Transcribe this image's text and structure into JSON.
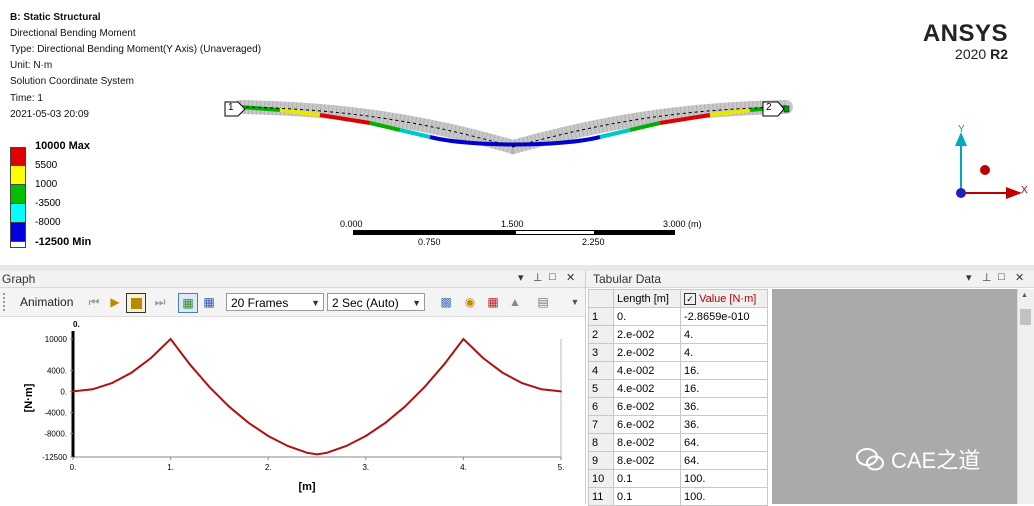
{
  "viewport": {
    "title": "B: Static Structural",
    "info": [
      "Directional Bending Moment",
      "Type: Directional Bending Moment(Y Axis) (Unaveraged)",
      "Unit: N·m",
      "Solution Coordinate System",
      "Time: 1",
      "2021-05-03 20:09"
    ],
    "legend": {
      "max_label": "10000 Max",
      "labels": [
        "5500",
        "1000",
        "-3500",
        "-8000"
      ],
      "min_label": "-12500 Min",
      "colors": [
        "#e00000",
        "#ffff00",
        "#00c000",
        "#00ffff",
        "#0000e0",
        "#ffffff"
      ]
    },
    "node_labels": [
      "1",
      "2"
    ],
    "scale_bar": {
      "top_labels": [
        "0.000",
        "1.500",
        "3.000 (m)"
      ],
      "bottom_labels": [
        "0.750",
        "2.250"
      ]
    },
    "triad": {
      "y": "Y",
      "x": "X"
    },
    "brand": {
      "name": "ANSYS",
      "version": "2020",
      "release": "R2"
    }
  },
  "graph": {
    "pane_title": "Graph",
    "animation_label": "Animation",
    "frames_value": "20 Frames",
    "time_value": "2 Sec (Auto)",
    "controls": [
      "▾",
      "⊥",
      "□",
      "✕"
    ]
  },
  "chart_data": {
    "type": "line",
    "title": "",
    "time_marker": "0.",
    "xlabel": "[m]",
    "ylabel": "[N·m]",
    "xlim": [
      0,
      5
    ],
    "ylim": [
      -12500,
      10000
    ],
    "x_ticks": [
      "0.",
      "1.",
      "2.",
      "3.",
      "4.",
      "5."
    ],
    "y_ticks": [
      "10000",
      "4000.",
      "0.",
      "-4000.",
      "-8000.",
      "-12500"
    ],
    "series": [
      {
        "color": "#b01010",
        "x": [
          0,
          0.2,
          0.4,
          0.6,
          0.8,
          1.0,
          1.2,
          1.4,
          1.6,
          1.8,
          2.0,
          2.2,
          2.4,
          2.5,
          2.6,
          2.8,
          3.0,
          3.2,
          3.4,
          3.6,
          3.8,
          4.0,
          4.2,
          4.4,
          4.6,
          4.8,
          5.0
        ],
        "y": [
          0,
          400,
          1600,
          3600,
          6400,
          10000,
          5100,
          800,
          -2900,
          -6000,
          -8500,
          -10400,
          -11700,
          -12000,
          -11700,
          -10400,
          -8500,
          -6000,
          -2900,
          800,
          5100,
          10000,
          6400,
          3600,
          1600,
          400,
          0
        ]
      }
    ]
  },
  "tabular": {
    "pane_title": "Tabular Data",
    "headers": [
      "Length [m]",
      "Value [N·m]"
    ],
    "rows": [
      [
        "1",
        "0.",
        "-2.8659e-010"
      ],
      [
        "2",
        "2.e-002",
        "4."
      ],
      [
        "3",
        "2.e-002",
        "4."
      ],
      [
        "4",
        "4.e-002",
        "16."
      ],
      [
        "5",
        "4.e-002",
        "16."
      ],
      [
        "6",
        "6.e-002",
        "36."
      ],
      [
        "7",
        "6.e-002",
        "36."
      ],
      [
        "8",
        "8.e-002",
        "64."
      ],
      [
        "9",
        "8.e-002",
        "64."
      ],
      [
        "10",
        "0.1",
        "100."
      ],
      [
        "11",
        "0.1",
        "100."
      ]
    ]
  },
  "watermark": "CAE之道"
}
